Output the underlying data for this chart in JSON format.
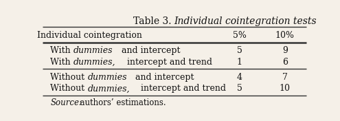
{
  "title_prefix": "Table 3. ",
  "title_italic": "Individual cointegration tests",
  "col_headers": [
    "Individual cointegration",
    "5%",
    "10%"
  ],
  "rows": [
    [
      "With",
      "dummies",
      "   and intercept",
      "5",
      "9"
    ],
    [
      "With",
      "dummies,",
      "    intercept and trend",
      "1",
      "6"
    ],
    [
      "Without",
      "dummies",
      "   and intercept",
      "4",
      "7"
    ],
    [
      "Without",
      "dummies,",
      "    intercept and trend",
      "5",
      "10"
    ]
  ],
  "source_label": "Source:",
  "source_text": "  authors’ estimations.",
  "bg_color": "#f5f0e8",
  "text_color": "#111111",
  "line_color": "#333333",
  "fontsize": 9.0,
  "title_fontsize": 10.0
}
